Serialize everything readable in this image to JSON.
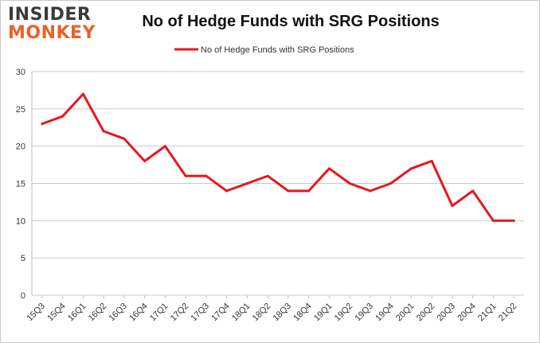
{
  "logo": {
    "top": "INSIDER",
    "bottom": "MONKEY"
  },
  "chart_data": {
    "type": "line",
    "title": "No of Hedge Funds with SRG Positions",
    "xlabel": "",
    "ylabel": "",
    "categories": [
      "15Q3",
      "15Q4",
      "16Q1",
      "16Q2",
      "16Q3",
      "16Q4",
      "17Q1",
      "17Q2",
      "17Q3",
      "17Q4",
      "18Q1",
      "18Q2",
      "18Q3",
      "18Q4",
      "19Q1",
      "19Q2",
      "19Q3",
      "19Q4",
      "20Q1",
      "20Q2",
      "20Q3",
      "20Q4",
      "21Q1",
      "21Q2"
    ],
    "series": [
      {
        "name": "No of Hedge Funds with SRG Positions",
        "color": "#e8171b",
        "values": [
          23,
          24,
          27,
          22,
          21,
          18,
          20,
          16,
          16,
          14,
          15,
          16,
          14,
          14,
          17,
          15,
          14,
          15,
          17,
          18,
          12,
          14,
          10,
          10
        ]
      }
    ],
    "ylim": [
      0,
      30
    ],
    "yticks": [
      0,
      5,
      10,
      15,
      20,
      25,
      30
    ],
    "grid": true,
    "legend": "top-center"
  }
}
